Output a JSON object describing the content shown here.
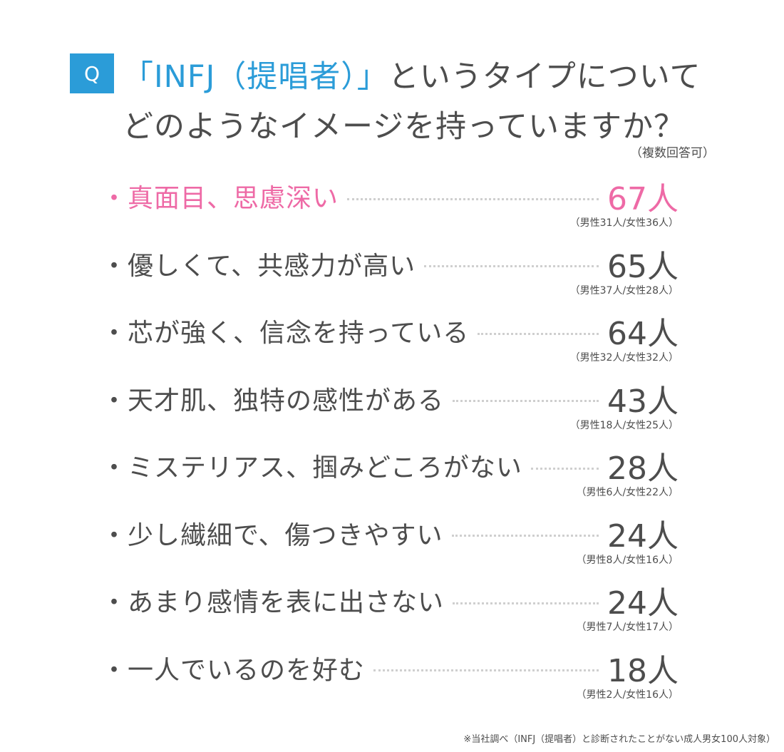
{
  "header": {
    "q_label": "Q",
    "title_accent": "「INFJ（提唱者）」",
    "title_line1_rest": "というタイプについて",
    "title_line2": "どのようなイメージを持っていますか？",
    "subnote": "（複数回答可）"
  },
  "chart_data": {
    "type": "table",
    "unit": "人",
    "rows": [
      {
        "label": "・真面目、思慮深い",
        "count": "67人",
        "value": 67,
        "breakdown": "（男性31人/女性36人）",
        "male": 31,
        "female": 36,
        "highlight": true
      },
      {
        "label": "・優しくて、共感力が高い",
        "count": "65人",
        "value": 65,
        "breakdown": "（男性37人/女性28人）",
        "male": 37,
        "female": 28
      },
      {
        "label": "・芯が強く、信念を持っている",
        "count": "64人",
        "value": 64,
        "breakdown": "（男性32人/女性32人）",
        "male": 32,
        "female": 32
      },
      {
        "label": "・天才肌、独特の感性がある",
        "count": "43人",
        "value": 43,
        "breakdown": "（男性18人/女性25人）",
        "male": 18,
        "female": 25
      },
      {
        "label": "・ミステリアス、掴みどころがない",
        "count": "28人",
        "value": 28,
        "breakdown": "（男性6人/女性22人）",
        "male": 6,
        "female": 22
      },
      {
        "label": "・少し繊細で、傷つきやすい",
        "count": "24人",
        "value": 24,
        "breakdown": "（男性8人/女性16人）",
        "male": 8,
        "female": 16
      },
      {
        "label": "・あまり感情を表に出さない",
        "count": "24人",
        "value": 24,
        "breakdown": "（男性7人/女性17人）",
        "male": 7,
        "female": 17
      },
      {
        "label": "・一人でいるのを好む",
        "count": "18人",
        "value": 18,
        "breakdown": "（男性2人/女性16人）",
        "male": 2,
        "female": 16
      }
    ]
  },
  "footnote": "※当社調べ（INFJ（提唱者）と診断されたことがない成人男女100人対象）",
  "colors": {
    "accent_blue": "#2b9cd8",
    "highlight_pink": "#ee6aa6",
    "text_gray": "#4d4d4d"
  }
}
